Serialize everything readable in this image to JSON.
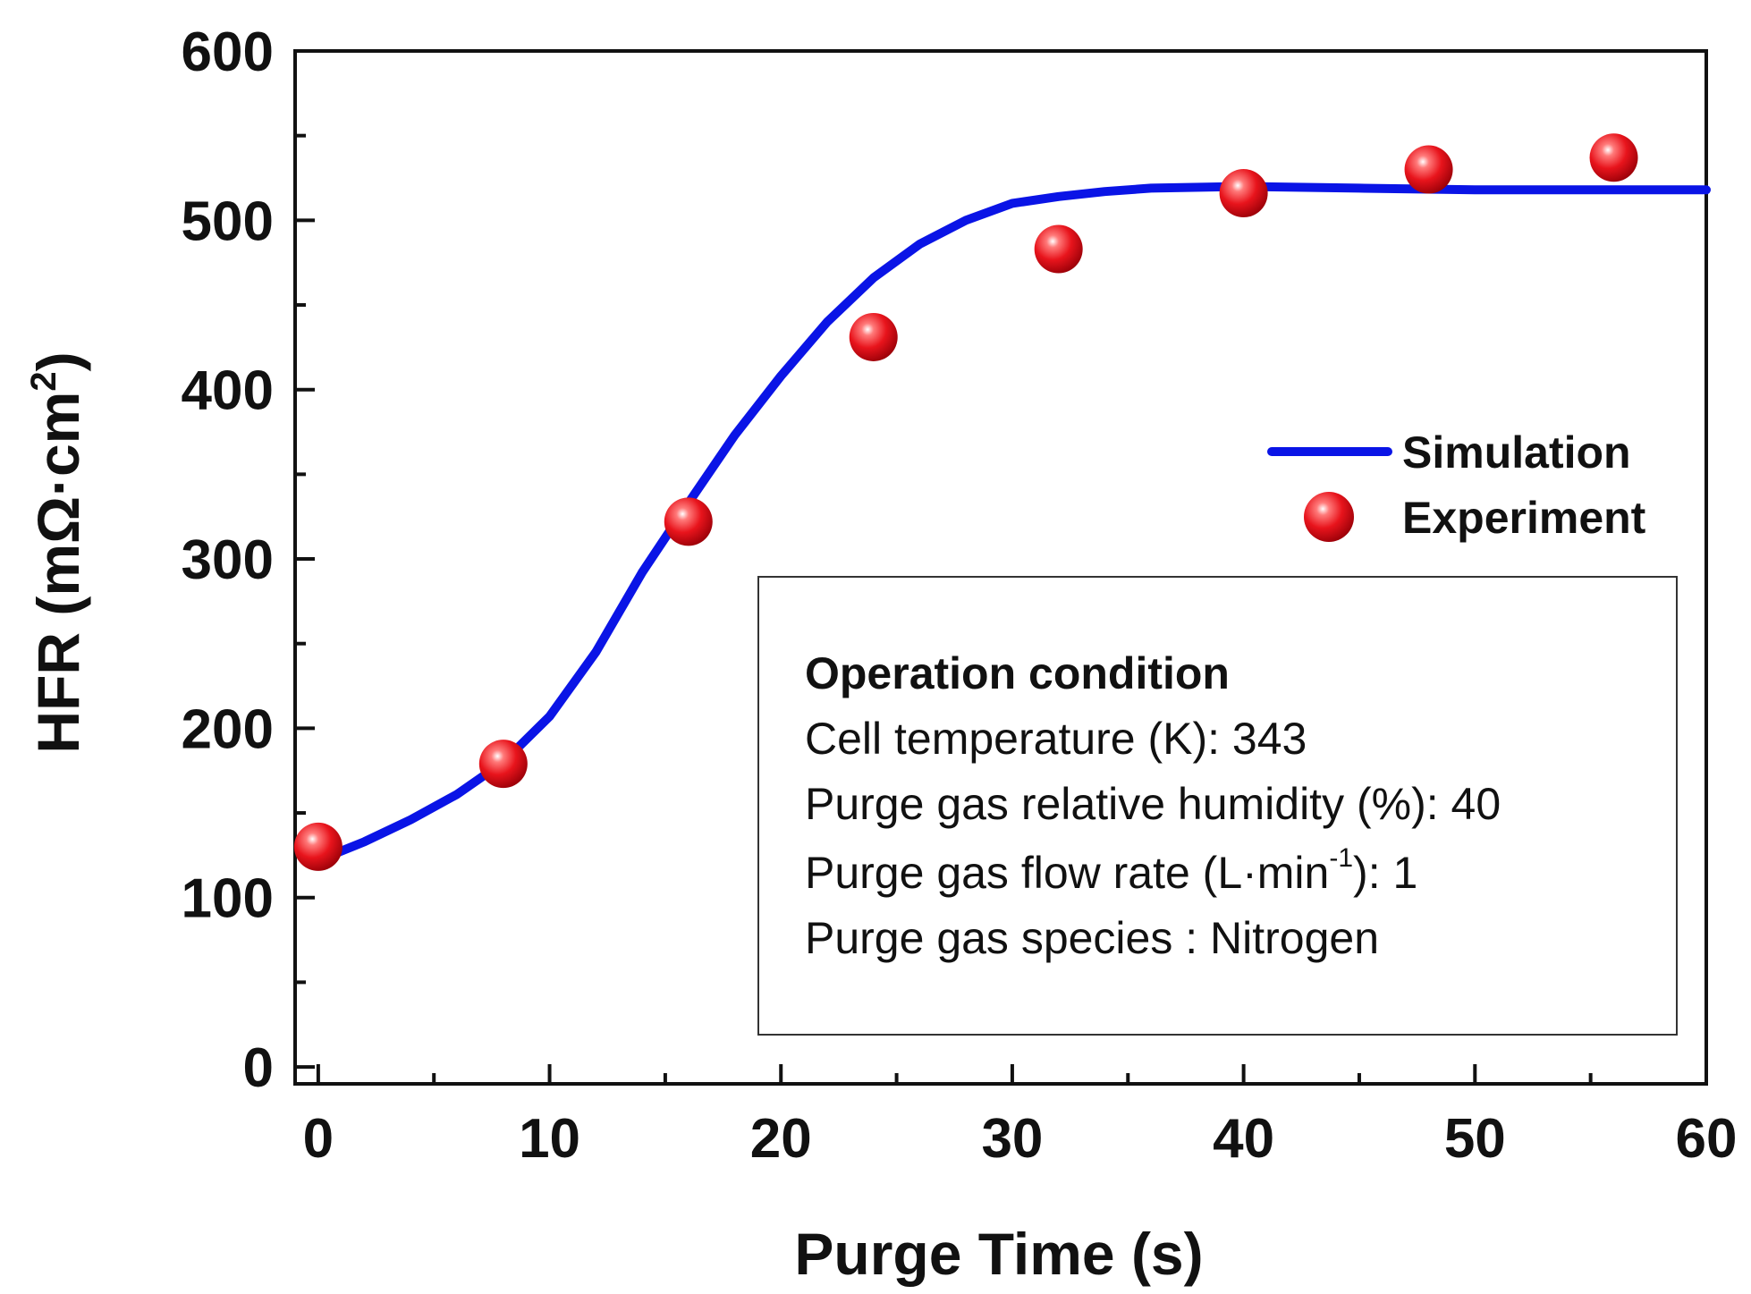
{
  "chart_data": {
    "type": "line",
    "title": "",
    "xlabel": "Purge Time (s)",
    "ylabel": "HFR (mΩ·cm",
    "ylabel_sup": "2",
    "ylabel_close": ")",
    "xlim": [
      -1,
      60
    ],
    "ylim": [
      -10,
      600
    ],
    "xticks": [
      0,
      10,
      20,
      30,
      40,
      50,
      60
    ],
    "xtick_labels": [
      "0",
      "10",
      "20",
      "30",
      "40",
      "50",
      "60"
    ],
    "yticks": [
      0,
      100,
      200,
      300,
      400,
      500,
      600
    ],
    "ytick_labels": [
      "0",
      "100",
      "200",
      "300",
      "400",
      "500",
      "600"
    ],
    "grid": false,
    "legend_position": "right",
    "series": [
      {
        "name": "Simulation",
        "kind": "line",
        "color": "#0a14e6",
        "x": [
          0,
          2,
          4,
          6,
          8,
          10,
          12,
          14,
          16,
          18,
          20,
          22,
          24,
          26,
          28,
          30,
          32,
          34,
          36,
          40,
          45,
          50,
          55,
          60
        ],
        "y": [
          122,
          133,
          146,
          161,
          180,
          207,
          245,
          292,
          333,
          373,
          408,
          440,
          466,
          486,
          500,
          510,
          514,
          517,
          519,
          520,
          519,
          518,
          518,
          518
        ]
      },
      {
        "name": "Experiment",
        "kind": "scatter",
        "color": "#e8141c",
        "x": [
          0,
          8,
          16,
          24,
          32,
          40,
          48,
          56
        ],
        "y": [
          130,
          179,
          322,
          431,
          483,
          516,
          530,
          537
        ]
      }
    ]
  },
  "conditions": {
    "title": "Operation condition",
    "line1": "Cell temperature (K): 343",
    "line2": "Purge gas relative humidity (%): 40",
    "line3_pre": "Purge gas flow rate (L·min",
    "line3_sup": "-1",
    "line3_post": "): 1",
    "line4": "Purge gas species : Nitrogen"
  }
}
